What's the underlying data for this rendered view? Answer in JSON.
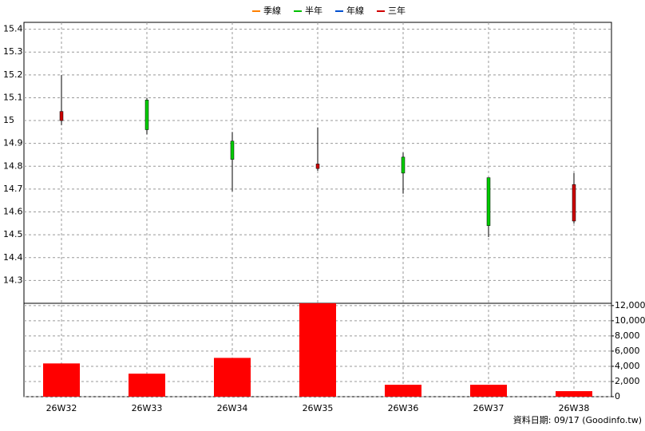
{
  "chart_data": {
    "type": "candlestick",
    "legend": [
      {
        "name": "季線",
        "color": "#ff8000"
      },
      {
        "name": "半年",
        "color": "#00c000"
      },
      {
        "name": "年線",
        "color": "#0050d0"
      },
      {
        "name": "三年",
        "color": "#d00000"
      }
    ],
    "categories": [
      "26W32",
      "26W33",
      "26W34",
      "26W35",
      "26W36",
      "26W37",
      "26W38"
    ],
    "open": [
      15.0,
      15.09,
      14.91,
      14.79,
      14.84,
      14.75,
      14.56
    ],
    "high": [
      15.2,
      15.1,
      14.95,
      14.97,
      14.86,
      14.75,
      14.77
    ],
    "low": [
      14.98,
      14.94,
      14.69,
      14.78,
      14.68,
      14.49,
      14.55
    ],
    "close": [
      15.04,
      14.96,
      14.83,
      14.81,
      14.77,
      14.54,
      14.72
    ],
    "up_color": "#cc0000",
    "down_color": "#00cc00",
    "ylim": [
      14.2,
      15.43
    ],
    "yticks": [
      14.3,
      14.4,
      14.5,
      14.6,
      14.7,
      14.8,
      14.9,
      15,
      15.1,
      15.2,
      15.3,
      15.4
    ],
    "volume": {
      "values": [
        4380,
        3030,
        5110,
        12300,
        1570,
        1570,
        730
      ],
      "color": "#ff0000",
      "ylim": [
        0,
        12300
      ],
      "yticks": [
        0,
        {
          "value": 2000,
          "label": "2,000"
        },
        {
          "value": 4000,
          "label": "4,000"
        },
        {
          "value": 6000,
          "label": "6,000"
        },
        {
          "value": 8000,
          "label": "8,000"
        },
        {
          "value": 10000,
          "label": "10,000"
        },
        {
          "value": 12000,
          "label": "12,000"
        }
      ]
    },
    "grid": true,
    "footer": "資料日期: 09/17  (Goodinfo.tw)"
  }
}
